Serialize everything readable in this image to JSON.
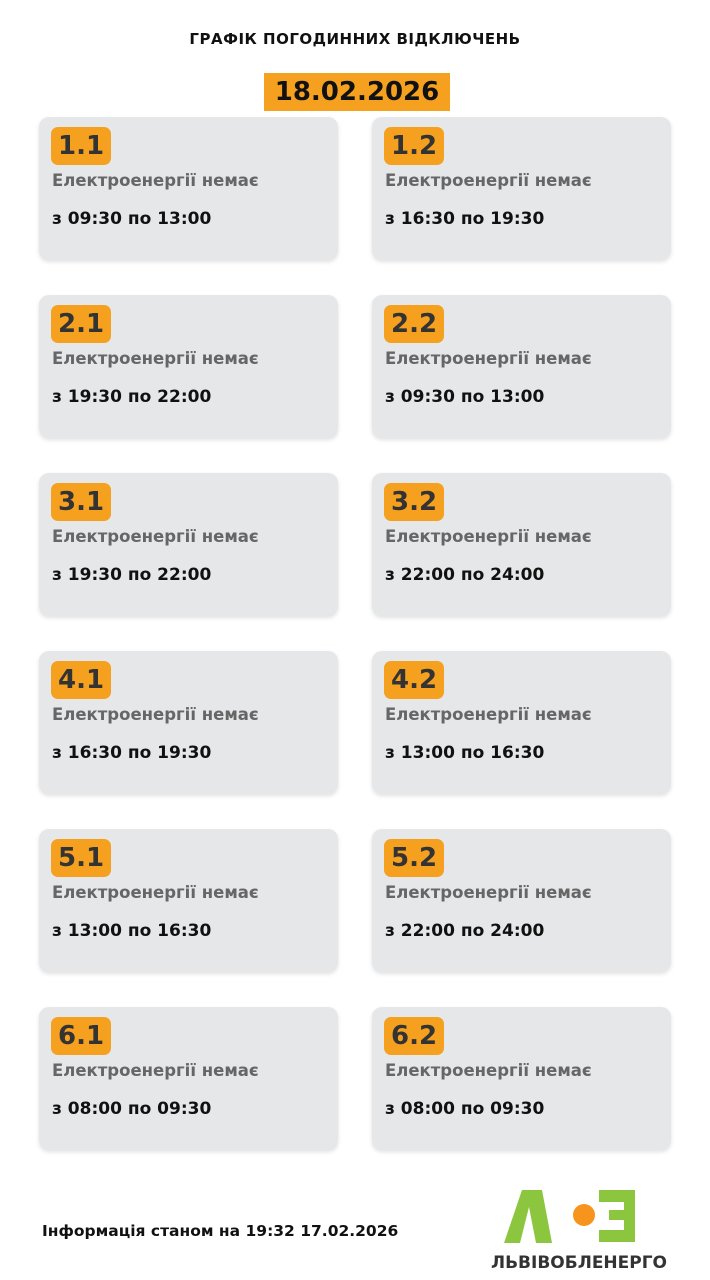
{
  "header": {
    "title": "ГРАФІК ПОГОДИННИХ ВІДКЛЮЧЕНЬ",
    "date": "18.02.2026"
  },
  "groups": [
    {
      "id": "1.1",
      "status": "Електроенергії немає",
      "time": "з 09:30 по 13:00"
    },
    {
      "id": "1.2",
      "status": "Електроенергії немає",
      "time": "з 16:30 по 19:30"
    },
    {
      "id": "2.1",
      "status": "Електроенергії немає",
      "time": "з 19:30 по 22:00"
    },
    {
      "id": "2.2",
      "status": "Електроенергії немає",
      "time": "з 09:30 по 13:00"
    },
    {
      "id": "3.1",
      "status": "Електроенергії немає",
      "time": "з 19:30 по 22:00"
    },
    {
      "id": "3.2",
      "status": "Електроенергії немає",
      "time": "з 22:00 по 24:00"
    },
    {
      "id": "4.1",
      "status": "Електроенергії немає",
      "time": "з 16:30 по 19:30"
    },
    {
      "id": "4.2",
      "status": "Електроенергії немає",
      "time": "з 13:00 по 16:30"
    },
    {
      "id": "5.1",
      "status": "Електроенергії немає",
      "time": "з 13:00 по 16:30"
    },
    {
      "id": "5.2",
      "status": "Електроенергії немає",
      "time": "з 22:00 по 24:00"
    },
    {
      "id": "6.1",
      "status": "Електроенергії немає",
      "time": "з 08:00 по 09:30"
    },
    {
      "id": "6.2",
      "status": "Електроенергії немає",
      "time": "з 08:00 по 09:30"
    }
  ],
  "footer": {
    "info": "Інформація станом на 19:32 17.02.2026",
    "logo_text": "ЛЬВІВОБЛЕНЕРГО"
  },
  "colors": {
    "accent": "#f5a11f",
    "card": "#e6e7e9",
    "logo_green": "#8cc63f",
    "logo_orange": "#f7941d"
  }
}
